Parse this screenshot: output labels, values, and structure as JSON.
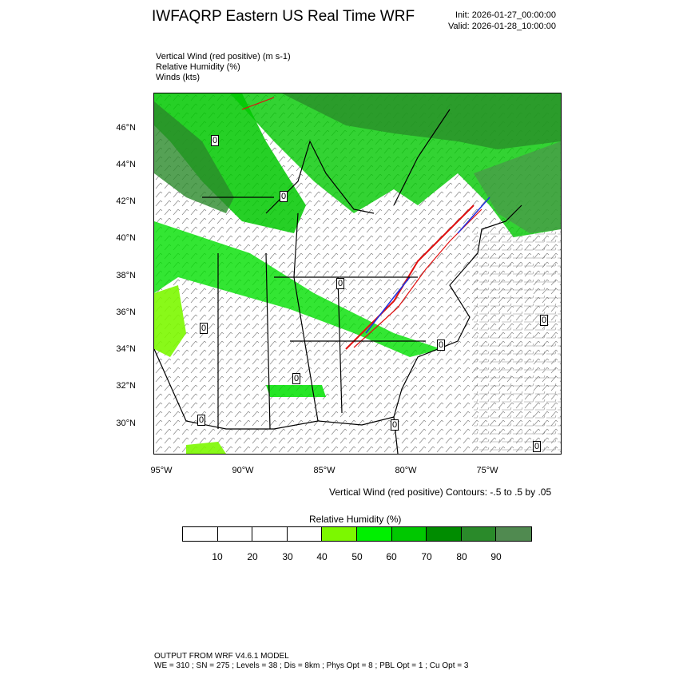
{
  "header": {
    "title": "IWFAQRP Eastern US Real Time WRF",
    "init": "Init: 2026-01-27_00:00:00",
    "valid": "Valid: 2026-01-28_10:00:00"
  },
  "fields": [
    "Vertical Wind (red positive)   (m s-1)",
    "Relative Humidity   (%)",
    "Winds   (kts)"
  ],
  "map": {
    "lat_labels": [
      "46°N",
      "44°N",
      "42°N",
      "40°N",
      "38°N",
      "36°N",
      "34°N",
      "32°N",
      "30°N"
    ],
    "lon_labels": [
      "95°W",
      "90°W",
      "85°W",
      "80°W",
      "75°W"
    ],
    "contour_zero_label": "0"
  },
  "contour_note": "Vertical Wind (red positive) Contours: -.5 to .5 by .05",
  "colorbar": {
    "title": "Relative Humidity   (%)",
    "labels": [
      "10",
      "20",
      "30",
      "40",
      "50",
      "60",
      "70",
      "80",
      "90"
    ],
    "colors": [
      "#ffffff",
      "#ffffff",
      "#ffffff",
      "#ffffff",
      "#7cf800",
      "#00f000",
      "#00c800",
      "#008c00",
      "#2a8a2a",
      "#508a50"
    ]
  },
  "footer": {
    "line1": "OUTPUT FROM WRF V4.6.1 MODEL",
    "line2": "WE = 310 ; SN = 275 ; Levels = 38 ; Dis = 8km ; Phys Opt = 8 ; PBL Opt = 1 ; Cu Opt = 3"
  }
}
